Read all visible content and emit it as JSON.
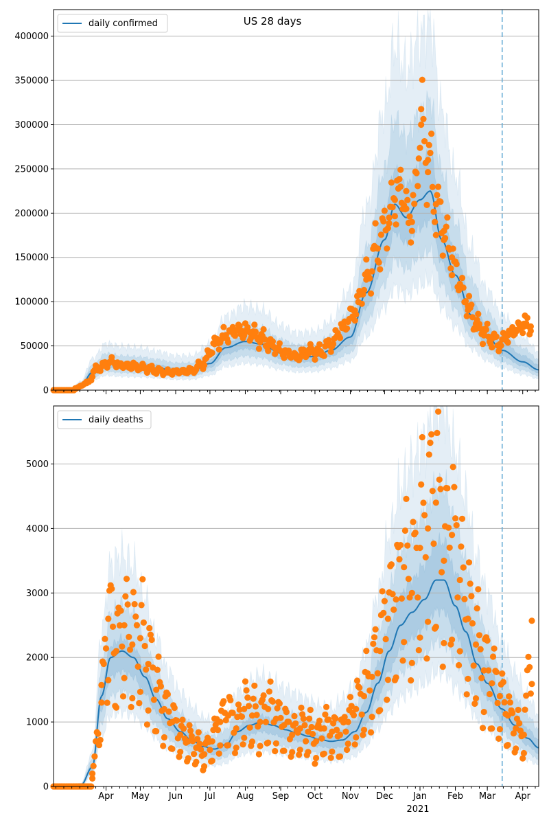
{
  "chart_data": [
    {
      "type": "line",
      "title": "US 28 days",
      "legend": [
        "daily confirmed"
      ],
      "legend_position": "top-left",
      "grid": "horizontal",
      "ylim": [
        0,
        430000
      ],
      "xlim": [
        "2020-02-15",
        "2021-04-15"
      ],
      "yticks": [
        0,
        50000,
        100000,
        150000,
        200000,
        250000,
        300000,
        350000,
        400000
      ],
      "ytick_labels": [
        "0",
        "50000",
        "100000",
        "150000",
        "200000",
        "250000",
        "300000",
        "350000",
        "400000"
      ],
      "vline_date": "2021-03-14",
      "series": [
        {
          "name": "daily confirmed",
          "kind": "model-mean",
          "x": [
            "2020-02-15",
            "2020-03-01",
            "2020-03-10",
            "2020-03-20",
            "2020-04-01",
            "2020-04-15",
            "2020-05-01",
            "2020-05-15",
            "2020-06-01",
            "2020-06-15",
            "2020-07-01",
            "2020-07-15",
            "2020-08-01",
            "2020-08-15",
            "2020-09-01",
            "2020-09-15",
            "2020-10-01",
            "2020-10-15",
            "2020-11-01",
            "2020-11-15",
            "2020-12-01",
            "2020-12-10",
            "2020-12-20",
            "2021-01-01",
            "2021-01-10",
            "2021-01-20",
            "2021-02-01",
            "2021-02-15",
            "2021-03-01",
            "2021-03-14",
            "2021-04-01",
            "2021-04-15"
          ],
          "y": [
            0,
            500,
            5000,
            20000,
            30000,
            28000,
            27000,
            25000,
            22000,
            22000,
            30000,
            48000,
            55000,
            52000,
            42000,
            37000,
            38000,
            45000,
            60000,
            110000,
            170000,
            210000,
            195000,
            215000,
            225000,
            170000,
            130000,
            85000,
            60000,
            45000,
            32000,
            23000
          ]
        },
        {
          "name": "observed",
          "kind": "scatter",
          "x": [
            "2020-03-05",
            "2020-03-15",
            "2020-03-25",
            "2020-04-05",
            "2020-04-15",
            "2020-04-25",
            "2020-05-05",
            "2020-05-15",
            "2020-05-25",
            "2020-06-05",
            "2020-06-15",
            "2020-06-25",
            "2020-07-05",
            "2020-07-15",
            "2020-07-25",
            "2020-08-05",
            "2020-08-15",
            "2020-08-25",
            "2020-09-05",
            "2020-09-15",
            "2020-09-25",
            "2020-10-05",
            "2020-10-15",
            "2020-10-25",
            "2020-11-05",
            "2020-11-15",
            "2020-11-25",
            "2020-12-05",
            "2020-12-10",
            "2020-12-15",
            "2020-12-20",
            "2020-12-25",
            "2021-01-02",
            "2021-01-08",
            "2021-01-15",
            "2021-01-22",
            "2021-01-29",
            "2021-02-05",
            "2021-02-12",
            "2021-02-19",
            "2021-02-26",
            "2021-03-05",
            "2021-03-12",
            "2021-03-19",
            "2021-03-26",
            "2021-04-02",
            "2021-04-08"
          ],
          "y": [
            2000,
            8000,
            25000,
            32000,
            28000,
            27000,
            25000,
            22000,
            20000,
            21000,
            22000,
            30000,
            52000,
            62000,
            68000,
            65000,
            58000,
            50000,
            42000,
            38000,
            44000,
            43000,
            52000,
            70000,
            90000,
            125000,
            160000,
            195000,
            215000,
            230000,
            205000,
            190000,
            300000,
            260000,
            210000,
            180000,
            150000,
            120000,
            95000,
            75000,
            65000,
            58000,
            52000,
            62000,
            68000,
            75000,
            72000
          ]
        }
      ]
    },
    {
      "type": "line",
      "legend": [
        "daily deaths"
      ],
      "legend_position": "top-left",
      "grid": "horizontal",
      "ylim": [
        0,
        5900
      ],
      "xlim": [
        "2020-02-15",
        "2021-04-15"
      ],
      "yticks": [
        0,
        1000,
        2000,
        3000,
        4000,
        5000
      ],
      "ytick_labels": [
        "0",
        "1000",
        "2000",
        "3000",
        "4000",
        "5000"
      ],
      "xtick_labels": [
        "Apr",
        "May",
        "Jun",
        "Jul",
        "Aug",
        "Sep",
        "Oct",
        "Nov",
        "Dec",
        "Jan",
        "Feb",
        "Mar",
        "Apr"
      ],
      "xtick_dates": [
        "2020-04-01",
        "2020-05-01",
        "2020-06-01",
        "2020-07-01",
        "2020-08-01",
        "2020-09-01",
        "2020-10-01",
        "2020-11-01",
        "2020-12-01",
        "2021-01-01",
        "2021-02-01",
        "2021-03-01",
        "2021-04-01"
      ],
      "year_label": "2021",
      "vline_date": "2021-03-14",
      "series": [
        {
          "name": "daily deaths",
          "kind": "model-mean",
          "x": [
            "2020-02-15",
            "2020-03-10",
            "2020-03-20",
            "2020-03-28",
            "2020-04-05",
            "2020-04-15",
            "2020-04-25",
            "2020-05-05",
            "2020-05-15",
            "2020-05-25",
            "2020-06-05",
            "2020-06-15",
            "2020-06-25",
            "2020-07-05",
            "2020-07-15",
            "2020-07-25",
            "2020-08-05",
            "2020-08-15",
            "2020-08-25",
            "2020-09-05",
            "2020-09-15",
            "2020-09-25",
            "2020-10-05",
            "2020-10-15",
            "2020-10-25",
            "2020-11-05",
            "2020-11-15",
            "2020-11-25",
            "2020-12-05",
            "2020-12-15",
            "2020-12-25",
            "2021-01-05",
            "2021-01-15",
            "2021-01-22",
            "2021-02-01",
            "2021-02-10",
            "2021-02-20",
            "2021-03-01",
            "2021-03-14",
            "2021-03-25",
            "2021-04-05",
            "2021-04-15"
          ],
          "y": [
            0,
            20,
            300,
            1400,
            2000,
            2100,
            2000,
            1700,
            1350,
            1050,
            850,
            720,
            620,
            580,
            650,
            850,
            950,
            1000,
            950,
            880,
            830,
            780,
            730,
            700,
            720,
            850,
            1150,
            1600,
            2100,
            2500,
            2700,
            2900,
            3200,
            3200,
            2800,
            2400,
            1900,
            1600,
            1200,
            950,
            750,
            600
          ]
        },
        {
          "name": "observed",
          "kind": "scatter",
          "x": [
            "2020-03-20",
            "2020-03-28",
            "2020-04-03",
            "2020-04-10",
            "2020-04-17",
            "2020-04-24",
            "2020-05-01",
            "2020-05-08",
            "2020-05-15",
            "2020-05-22",
            "2020-05-29",
            "2020-06-05",
            "2020-06-12",
            "2020-06-19",
            "2020-06-26",
            "2020-07-03",
            "2020-07-10",
            "2020-07-17",
            "2020-07-24",
            "2020-07-31",
            "2020-08-07",
            "2020-08-14",
            "2020-08-21",
            "2020-08-28",
            "2020-09-04",
            "2020-09-11",
            "2020-09-18",
            "2020-09-25",
            "2020-10-02",
            "2020-10-09",
            "2020-10-16",
            "2020-10-23",
            "2020-10-30",
            "2020-11-06",
            "2020-11-13",
            "2020-11-20",
            "2020-11-27",
            "2020-12-04",
            "2020-12-11",
            "2020-12-18",
            "2020-12-25",
            "2021-01-01",
            "2021-01-08",
            "2021-01-15",
            "2021-01-22",
            "2021-01-29",
            "2021-02-05",
            "2021-02-12",
            "2021-02-19",
            "2021-02-26",
            "2021-03-05",
            "2021-03-12",
            "2021-03-19",
            "2021-03-26",
            "2021-04-02",
            "2021-04-09"
          ],
          "y": [
            200,
            1300,
            2600,
            2100,
            2500,
            2200,
            2300,
            1900,
            1500,
            1200,
            1000,
            800,
            700,
            600,
            500,
            700,
            1000,
            1100,
            900,
            1200,
            1100,
            1000,
            1200,
            1050,
            950,
            800,
            900,
            850,
            700,
            900,
            850,
            800,
            1000,
            1200,
            1400,
            1700,
            2100,
            2600,
            2900,
            3400,
            3000,
            3700,
            4000,
            4400,
            3500,
            3900,
            3200,
            2600,
            2200,
            1800,
            1600,
            1400,
            1100,
            900,
            800,
            2570
          ]
        }
      ]
    }
  ]
}
